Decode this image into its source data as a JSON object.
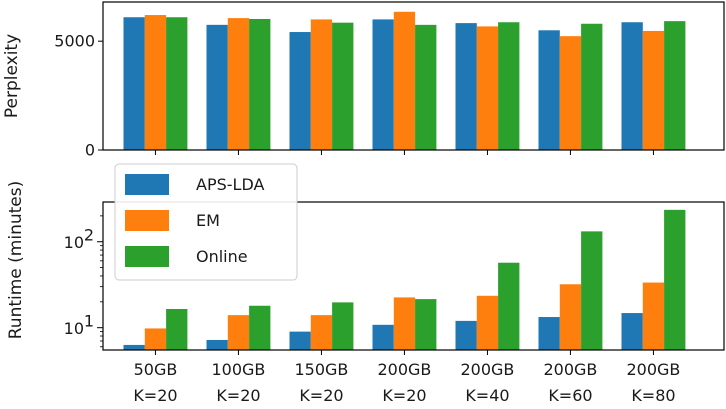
{
  "chart_data": [
    {
      "type": "bar",
      "panel": "top",
      "title": "",
      "xlabel": "",
      "ylabel": "Perplexity",
      "yscale": "linear",
      "ylim": [
        0,
        6800
      ],
      "yticks": [
        0,
        5000
      ],
      "ytick_labels": [
        "0",
        "5000"
      ],
      "categories": [
        "50GB K=20",
        "100GB K=20",
        "150GB K=20",
        "200GB K=20",
        "200GB K=40",
        "200GB K=60",
        "200GB K=80"
      ],
      "series": [
        {
          "name": "APS-LDA",
          "color": "#1f77b4",
          "values": [
            6100,
            5750,
            5420,
            6000,
            5830,
            5500,
            5870
          ]
        },
        {
          "name": "EM",
          "color": "#ff7f0e",
          "values": [
            6200,
            6060,
            6000,
            6350,
            5680,
            5230,
            5470
          ]
        },
        {
          "name": "Online",
          "color": "#2ca02c",
          "values": [
            6100,
            6020,
            5850,
            5750,
            5870,
            5800,
            5920
          ]
        }
      ]
    },
    {
      "type": "bar",
      "panel": "bottom",
      "title": "",
      "xlabel": "",
      "ylabel": "Runtime (minutes)",
      "yscale": "log",
      "ylim": [
        5.5,
        290
      ],
      "yticks": [
        10,
        100
      ],
      "ytick_labels": [
        "10^1",
        "10^2"
      ],
      "categories": [
        {
          "size": "50GB",
          "k": "K=20"
        },
        {
          "size": "100GB",
          "k": "K=20"
        },
        {
          "size": "150GB",
          "k": "K=20"
        },
        {
          "size": "200GB",
          "k": "K=20"
        },
        {
          "size": "200GB",
          "k": "K=40"
        },
        {
          "size": "200GB",
          "k": "K=60"
        },
        {
          "size": "200GB",
          "k": "K=80"
        }
      ],
      "series": [
        {
          "name": "APS-LDA",
          "color": "#1f77b4",
          "values": [
            6.3,
            7.2,
            9.0,
            10.8,
            12.0,
            13.3,
            14.8
          ]
        },
        {
          "name": "EM",
          "color": "#ff7f0e",
          "values": [
            9.8,
            14.0,
            14.0,
            22.5,
            23.5,
            32.0,
            33.5
          ]
        },
        {
          "name": "Online",
          "color": "#2ca02c",
          "values": [
            16.5,
            18.0,
            19.7,
            21.5,
            57.0,
            132.0,
            235.0
          ]
        }
      ],
      "legend": {
        "placement": "upper-left",
        "entries": [
          "APS-LDA",
          "EM",
          "Online"
        ]
      }
    }
  ]
}
